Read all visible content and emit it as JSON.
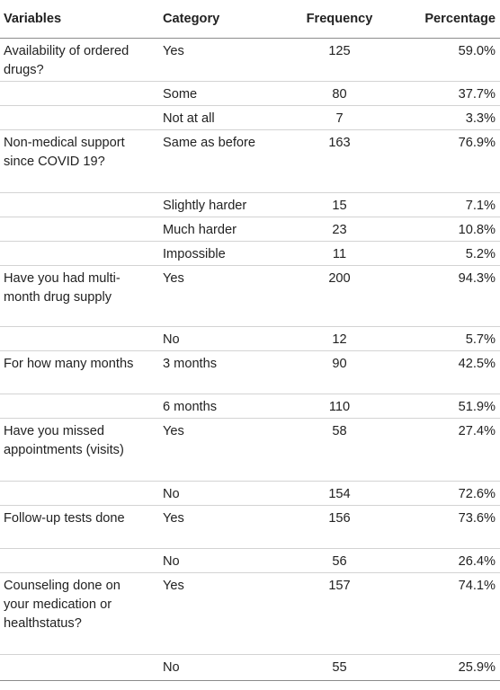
{
  "headers": {
    "variables": "Variables",
    "category": "Category",
    "frequency": "Frequency",
    "percentage": "Percentage"
  },
  "rows": [
    {
      "variable": "Availability of ordered drugs?",
      "category": "Yes",
      "frequency": "125",
      "percentage": "59.0%"
    },
    {
      "variable": "",
      "category": "Some",
      "frequency": "80",
      "percentage": "37.7%"
    },
    {
      "variable": "",
      "category": "Not at all",
      "frequency": "7",
      "percentage": "3.3%"
    },
    {
      "variable": "Non-medical support since COVID 19?",
      "category": "Same as before",
      "frequency": "163",
      "percentage": "76.9%"
    },
    {
      "variable": "",
      "category": "Slightly harder",
      "frequency": "15",
      "percentage": "7.1%"
    },
    {
      "variable": "",
      "category": "Much harder",
      "frequency": "23",
      "percentage": "10.8%"
    },
    {
      "variable": "",
      "category": "Impossible",
      "frequency": "11",
      "percentage": "5.2%"
    },
    {
      "variable": "Have you had multi-month drug supply",
      "category": "Yes",
      "frequency": "200",
      "percentage": "94.3%"
    },
    {
      "variable": "",
      "category": "No",
      "frequency": "12",
      "percentage": "5.7%"
    },
    {
      "variable": "For how many months",
      "category": "3 months",
      "frequency": "90",
      "percentage": "42.5%"
    },
    {
      "variable": "",
      "category": "6 months",
      "frequency": "110",
      "percentage": "51.9%"
    },
    {
      "variable": "Have you missed appointments (visits)",
      "category": "Yes",
      "frequency": "58",
      "percentage": "27.4%"
    },
    {
      "variable": "",
      "category": "No",
      "frequency": "154",
      "percentage": "72.6%"
    },
    {
      "variable": "Follow-up tests done",
      "category": "Yes",
      "frequency": "156",
      "percentage": "73.6%"
    },
    {
      "variable": "",
      "category": "No",
      "frequency": "56",
      "percentage": "26.4%"
    },
    {
      "variable": "Counseling done on your medication or healthstatus?",
      "category": "Yes",
      "frequency": "157",
      "percentage": "74.1%"
    },
    {
      "variable": "",
      "category": "No",
      "frequency": "55",
      "percentage": "25.9%"
    }
  ]
}
